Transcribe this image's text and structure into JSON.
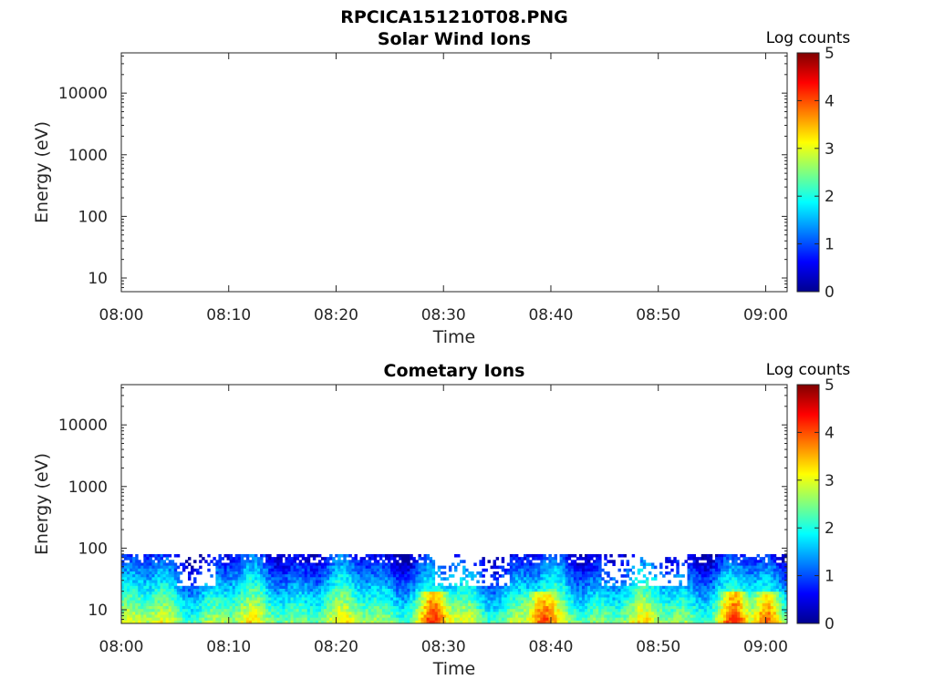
{
  "figure": {
    "filename": "RPCICA151210T08.PNG"
  },
  "chart_data": [
    {
      "type": "heatmap",
      "title": "Solar Wind Ions",
      "xlabel": "Time",
      "ylabel": "Energy (eV)",
      "x_range": [
        "08:00",
        "09:02"
      ],
      "x_ticks": [
        "08:00",
        "08:10",
        "08:20",
        "08:30",
        "08:40",
        "08:50",
        "09:00"
      ],
      "y_scale": "log",
      "y_range": [
        6,
        45000
      ],
      "y_ticks": [
        "10",
        "100",
        "1000",
        "10000"
      ],
      "y_tick_values": [
        10,
        100,
        1000,
        10000
      ],
      "colorbar": {
        "label": "Log counts",
        "range": [
          0,
          5
        ],
        "ticks": [
          "0",
          "1",
          "2",
          "3",
          "4",
          "5"
        ],
        "colormap": "jet"
      },
      "data_description": "empty"
    },
    {
      "type": "heatmap",
      "title": "Cometary Ions",
      "xlabel": "Time",
      "ylabel": "Energy (eV)",
      "x_range": [
        "08:00",
        "09:02"
      ],
      "x_ticks": [
        "08:00",
        "08:10",
        "08:20",
        "08:30",
        "08:40",
        "08:50",
        "09:00"
      ],
      "y_scale": "log",
      "y_range": [
        6,
        45000
      ],
      "y_ticks": [
        "10",
        "100",
        "1000",
        "10000"
      ],
      "y_tick_values": [
        10,
        100,
        1000,
        10000
      ],
      "colorbar": {
        "label": "Log counts",
        "range": [
          0,
          5
        ],
        "ticks": [
          "0",
          "1",
          "2",
          "3",
          "4",
          "5"
        ],
        "colormap": "jet"
      },
      "data_range_energy_eV": [
        6,
        80
      ],
      "peak_log_counts": [
        {
          "time": "08:29",
          "energy_eV": 12,
          "log_counts": 3.8
        },
        {
          "time": "08:39",
          "energy_eV": 12,
          "log_counts": 3.7
        },
        {
          "time": "08:57",
          "energy_eV": 15,
          "log_counts": 3.7
        },
        {
          "time": "09:00",
          "energy_eV": 12,
          "log_counts": 3.6
        }
      ]
    }
  ]
}
